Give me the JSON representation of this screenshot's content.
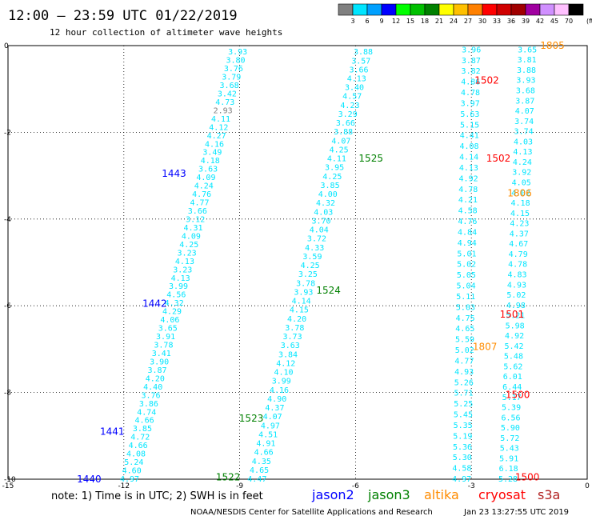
{
  "title": "12:00 – 23:59 UTC 01/22/2019",
  "subtitle": "12 hour collection of altimeter wave heights",
  "colorbar": {
    "labels": [
      "3",
      "6",
      "9",
      "12",
      "15",
      "18",
      "21",
      "24",
      "27",
      "30",
      "33",
      "36",
      "39",
      "42",
      "45",
      "70"
    ],
    "unit": "(ft)",
    "colors": [
      "#808080",
      "#00e5ff",
      "#00a0ff",
      "#0000ff",
      "#00ff00",
      "#00c000",
      "#008000",
      "#ffff00",
      "#ffc000",
      "#ff8000",
      "#ff0000",
      "#d00000",
      "#a00000",
      "#a000a0",
      "#d090ff",
      "#ffc0ff",
      "#000000"
    ]
  },
  "note": "note: 1) Time is in UTC; 2) SWH is in feet",
  "satellites": [
    {
      "name": "jason2",
      "color": "#0000ff"
    },
    {
      "name": "jason3",
      "color": "#008000"
    },
    {
      "name": "altika",
      "color": "#ff8c00"
    },
    {
      "name": "cryosat",
      "color": "#ff0000"
    },
    {
      "name": "s3a",
      "color": "#b22222"
    }
  ],
  "credit": "NOAA/NESDIS Center for Satellite Applications and Research",
  "timestamp": "Jan 23 13:27:55 UTC 2019",
  "chart_data": {
    "type": "scatter",
    "xlim": [
      -15,
      0
    ],
    "ylim": [
      -10,
      0
    ],
    "x_ticks": [
      "-15",
      "-12",
      "-9",
      "-6",
      "-3",
      "0"
    ],
    "y_ticks": [
      "0",
      "-2",
      "-4",
      "-6",
      "-8",
      "-10"
    ],
    "grid": true,
    "tracks": [
      {
        "x0": -11.85,
        "y0": -10.0,
        "x1": -9.05,
        "y1": -0.15,
        "color": "#00e5ff",
        "values": [
          "4.97",
          "4.60",
          "5.24",
          "4.08",
          "4.66",
          "4.72",
          "3.85",
          "4.66",
          "4.74",
          "3.86",
          "3.76",
          "4.40",
          "4.20",
          "3.87",
          "3.90",
          "3.41",
          "3.78",
          "3.91",
          "3.65",
          "4.06",
          "4.29",
          "4.32",
          "4.56",
          "3.99",
          "4.13",
          "3.23",
          "4.13",
          "3.23",
          "4.25",
          "4.09",
          "4.31",
          "3.12",
          "3.66",
          "4.77",
          "4.76",
          "4.24",
          "4.09",
          "3.63",
          "4.18",
          "3.49",
          "4.16",
          "4.27",
          "4.12",
          "4.11",
          "2.93",
          "4.73",
          "3.42",
          "3.68",
          "3.79",
          "3.76",
          "3.80",
          "3.93"
        ]
      },
      {
        "x0": -8.55,
        "y0": -10.0,
        "x1": -5.8,
        "y1": -0.15,
        "color": "#00e5ff",
        "values": [
          "4.47",
          "4.65",
          "4.35",
          "4.66",
          "4.91",
          "4.51",
          "4.97",
          "4.07",
          "4.37",
          "4.90",
          "4.16",
          "3.99",
          "4.10",
          "4.12",
          "3.84",
          "3.63",
          "3.73",
          "3.78",
          "4.20",
          "4.15",
          "4.14",
          "3.93",
          "3.78",
          "3.25",
          "4.25",
          "3.59",
          "4.33",
          "3.72",
          "4.04",
          "3.70",
          "4.03",
          "4.32",
          "4.00",
          "3.85",
          "4.25",
          "3.95",
          "4.11",
          "4.25",
          "4.07",
          "3.88",
          "3.66",
          "3.29",
          "4.23",
          "4.57",
          "3.40",
          "4.13",
          "3.66",
          "3.57",
          "3.88"
        ]
      },
      {
        "x0": -3.25,
        "y0": -10.0,
        "x1": -3.0,
        "y1": -0.1,
        "color": "#00e5ff",
        "values": [
          "4.97",
          "4.58",
          "5.30",
          "5.36",
          "5.19",
          "5.35",
          "5.45",
          "5.25",
          "5.71",
          "5.26",
          "4.93",
          "4.77",
          "5.02",
          "5.59",
          "4.65",
          "4.75",
          "5.03",
          "5.11",
          "5.04",
          "5.05",
          "5.02",
          "5.01",
          "4.94",
          "4.84",
          "4.76",
          "4.58",
          "4.21",
          "4.78",
          "4.92",
          "4.13",
          "4.14",
          "4.08",
          "4.41",
          "5.15",
          "5.63",
          "3.97",
          "4.78",
          "4.86",
          "3.82",
          "3.87",
          "3.96"
        ]
      },
      {
        "x0": -2.05,
        "y0": -10.0,
        "x1": -1.55,
        "y1": -0.1,
        "color": "#00e5ff",
        "values": [
          "5.28",
          "6.18",
          "5.91",
          "5.43",
          "5.72",
          "5.90",
          "6.56",
          "5.39",
          "5.17",
          "6.44",
          "6.01",
          "5.62",
          "5.48",
          "5.42",
          "4.92",
          "5.98",
          "5.21",
          "4.98",
          "5.02",
          "4.93",
          "4.83",
          "4.78",
          "4.79",
          "4.67",
          "4.37",
          "4.23",
          "4.15",
          "4.18",
          "4.02",
          "4.05",
          "3.92",
          "4.24",
          "4.13",
          "4.03",
          "3.74",
          "3.74",
          "4.07",
          "3.87",
          "3.68",
          "3.93",
          "3.88",
          "3.81",
          "3.65"
        ]
      }
    ],
    "pass_labels": [
      {
        "text": "1443",
        "x": -10.7,
        "y": -2.95,
        "color": "#0000ff"
      },
      {
        "text": "1442",
        "x": -11.2,
        "y": -5.95,
        "color": "#0000ff"
      },
      {
        "text": "1441",
        "x": -12.3,
        "y": -8.9,
        "color": "#0000ff"
      },
      {
        "text": "1440",
        "x": -12.9,
        "y": -10.0,
        "color": "#0000ff"
      },
      {
        "text": "1525",
        "x": -5.6,
        "y": -2.6,
        "color": "#008000"
      },
      {
        "text": "1524",
        "x": -6.7,
        "y": -5.65,
        "color": "#008000"
      },
      {
        "text": "1523",
        "x": -8.7,
        "y": -8.6,
        "color": "#008000"
      },
      {
        "text": "1522",
        "x": -9.3,
        "y": -9.95,
        "color": "#008000"
      },
      {
        "text": "1805",
        "x": -0.9,
        "y": 0.0,
        "color": "#ff8c00"
      },
      {
        "text": "1806",
        "x": -1.75,
        "y": -3.4,
        "color": "#ff8c00"
      },
      {
        "text": "1807",
        "x": -2.65,
        "y": -6.95,
        "color": "#ff8c00"
      },
      {
        "text": "1502",
        "x": -2.6,
        "y": -0.8,
        "color": "#ff0000"
      },
      {
        "text": "1502",
        "x": -2.3,
        "y": -2.6,
        "color": "#ff0000"
      },
      {
        "text": "1501",
        "x": -1.95,
        "y": -6.2,
        "color": "#ff0000"
      },
      {
        "text": "1500",
        "x": -1.8,
        "y": -8.05,
        "color": "#ff0000"
      },
      {
        "text": "1500",
        "x": -1.55,
        "y": -9.95,
        "color": "#ff0000"
      }
    ]
  }
}
